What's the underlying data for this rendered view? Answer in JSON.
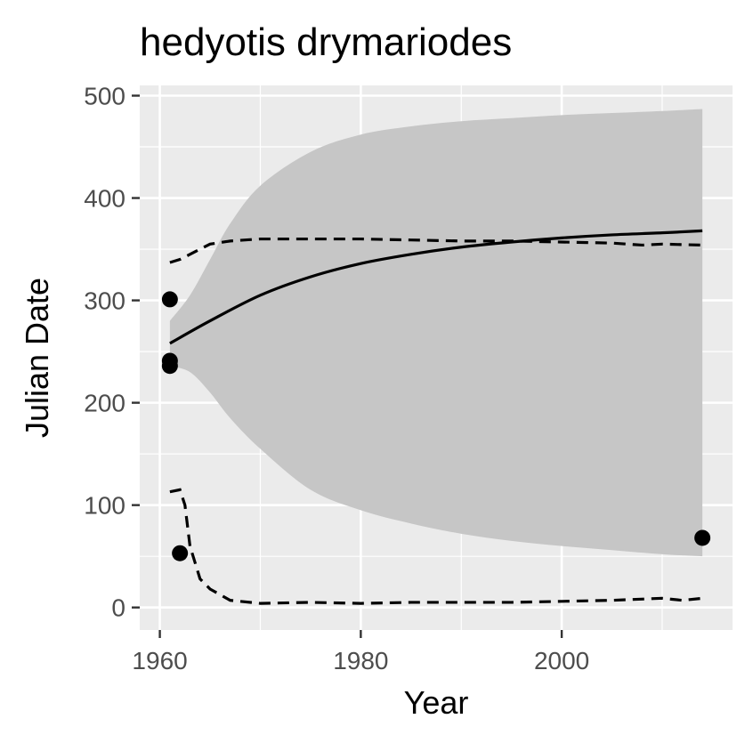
{
  "chart_data": {
    "type": "line",
    "title": "hedyotis drymariodes",
    "xlabel": "Year",
    "ylabel": "Julian Date",
    "xlim": [
      1958,
      2017
    ],
    "ylim": [
      -22,
      510
    ],
    "x_ticks": [
      1960,
      1980,
      2000
    ],
    "y_ticks": [
      0,
      100,
      200,
      300,
      400,
      500
    ],
    "grid": true,
    "legend": "none",
    "colors": {
      "panel": "#ebebeb",
      "grid": "#ffffff",
      "band": "#c6c6c6",
      "line": "#000000",
      "point": "#000000",
      "tick_label": "#4d4d4d"
    },
    "points": [
      {
        "x": 1961,
        "y": 301
      },
      {
        "x": 1961,
        "y": 241
      },
      {
        "x": 1961,
        "y": 236
      },
      {
        "x": 1962,
        "y": 53
      },
      {
        "x": 2014,
        "y": 68
      }
    ],
    "fit_line": {
      "x": [
        1961,
        1965,
        1970,
        1975,
        1980,
        1985,
        1990,
        1995,
        2000,
        2005,
        2010,
        2014
      ],
      "y": [
        258,
        280,
        305,
        323,
        336,
        345,
        352,
        357,
        361,
        364,
        366,
        368
      ]
    },
    "confidence_band": {
      "x": [
        1961,
        1963,
        1965,
        1967,
        1970,
        1975,
        1980,
        1985,
        1990,
        1995,
        2000,
        2005,
        2010,
        2014
      ],
      "upper": [
        280,
        305,
        340,
        375,
        412,
        445,
        462,
        470,
        475,
        478,
        481,
        483,
        485,
        487
      ],
      "lower": [
        236,
        230,
        210,
        185,
        155,
        115,
        95,
        82,
        72,
        65,
        60,
        56,
        52,
        50
      ]
    },
    "upper_quantile_line": {
      "x": [
        1961,
        1962,
        1963,
        1965,
        1967,
        1970,
        1975,
        1980,
        1985,
        1990,
        1995,
        2000,
        2005,
        2008,
        2010,
        2014
      ],
      "y": [
        337,
        340,
        345,
        355,
        358,
        360,
        360,
        360,
        359,
        358,
        358,
        357,
        356,
        354,
        355,
        354
      ]
    },
    "lower_quantile_line": {
      "x": [
        1961,
        1962,
        1962.5,
        1963,
        1964,
        1965,
        1967,
        1970,
        1975,
        1980,
        1985,
        1990,
        1995,
        2000,
        2005,
        2010,
        2012,
        2014
      ],
      "y": [
        113,
        115,
        100,
        60,
        28,
        18,
        7,
        4,
        5,
        4,
        5,
        5,
        5,
        6,
        7,
        9,
        7,
        9
      ]
    }
  }
}
